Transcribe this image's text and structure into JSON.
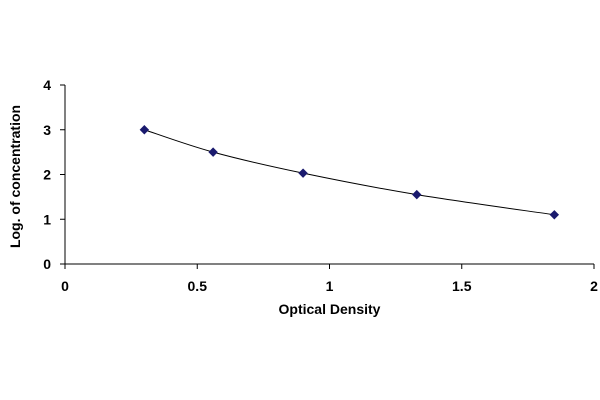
{
  "chart_data": {
    "type": "scatter",
    "xlabel": "Optical Density",
    "ylabel": "Log. of concentration",
    "xlim": [
      0,
      2
    ],
    "ylim": [
      0,
      4
    ],
    "x_ticks": [
      "0",
      "0.5",
      "1",
      "1.5",
      "2"
    ],
    "y_ticks": [
      "0",
      "1",
      "2",
      "3",
      "4"
    ],
    "grid": false,
    "legend": "none",
    "trendline": "smooth curve through points",
    "series": [
      {
        "x": [
          0.3,
          0.56,
          0.9,
          1.33,
          1.85
        ],
        "y": [
          3.0,
          2.5,
          2.03,
          1.55,
          1.1
        ]
      }
    ],
    "colors": {
      "marker": "#1a1a6e",
      "line": "#000000",
      "axis": "#000000"
    }
  }
}
